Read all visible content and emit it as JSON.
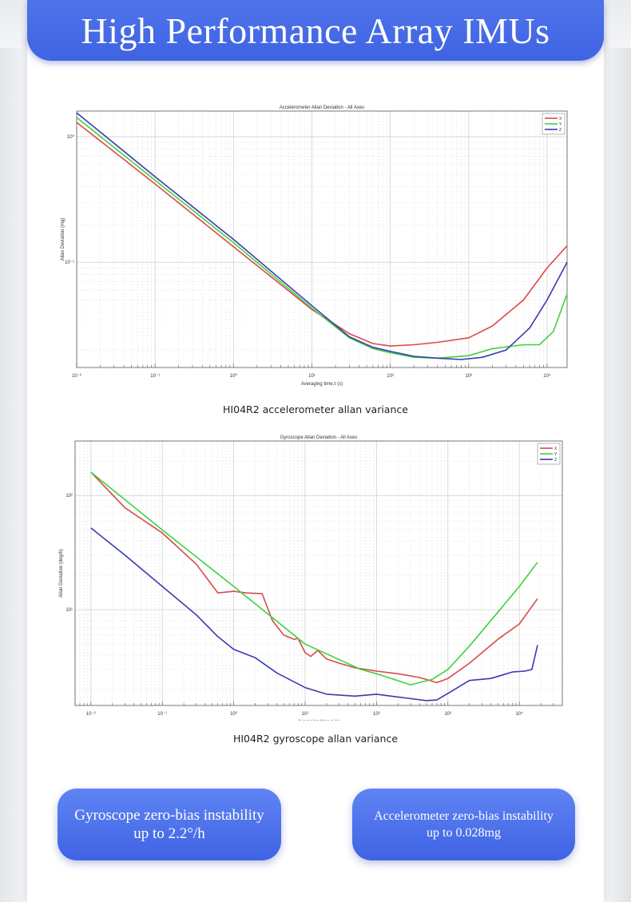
{
  "page": {
    "title": "High Performance Array IMUs",
    "captions": {
      "accel": "HI04R2 accelerometer allan variance",
      "gyro": "HI04R2 gyroscope allan variance"
    },
    "badges": {
      "gyro_line1": "Gyroscope zero-bias instability",
      "gyro_line2": "up to 2.2°/h",
      "accel_line1": "Accelerometer zero-bias instability",
      "accel_line2": "up to 0.028mg"
    }
  },
  "colors": {
    "x": "#d94a4a",
    "y": "#3fd23f",
    "z": "#3a3ab0",
    "accent": "#4a6ee8"
  },
  "chart_data": [
    {
      "id": "accel",
      "type": "line",
      "title": "Accelerometer Allan Deviation - All Axes",
      "xlabel": "Averaging time,τ (s)",
      "ylabel": "Allan Deviation (mg)",
      "xscale": "log",
      "yscale": "log",
      "xlim": [
        0.01,
        18000
      ],
      "ylim": [
        0.0145,
        1.6
      ],
      "xticks": [
        {
          "v": 0.01,
          "label": "10⁻²"
        },
        {
          "v": 0.1,
          "label": "10⁻¹"
        },
        {
          "v": 1,
          "label": "10⁰"
        },
        {
          "v": 10,
          "label": "10¹"
        },
        {
          "v": 100,
          "label": "10²"
        },
        {
          "v": 1000,
          "label": "10³"
        },
        {
          "v": 10000,
          "label": "10⁴"
        }
      ],
      "yticks": [
        {
          "v": 1,
          "label": "10⁰"
        },
        {
          "v": 0.1,
          "label": "10⁻¹"
        }
      ],
      "legend": "top-right",
      "series": [
        {
          "name": "X",
          "color": "#d94a4a",
          "points": [
            [
              0.01,
              1.3
            ],
            [
              0.1,
              0.42
            ],
            [
              1,
              0.133
            ],
            [
              10,
              0.042
            ],
            [
              30,
              0.027
            ],
            [
              60,
              0.0225
            ],
            [
              100,
              0.0215
            ],
            [
              200,
              0.022
            ],
            [
              400,
              0.023
            ],
            [
              1000,
              0.025
            ],
            [
              2000,
              0.031
            ],
            [
              5000,
              0.05
            ],
            [
              10000,
              0.09
            ],
            [
              18000,
              0.135
            ]
          ]
        },
        {
          "name": "Y",
          "color": "#3fd23f",
          "points": [
            [
              0.01,
              1.42
            ],
            [
              0.1,
              0.45
            ],
            [
              1,
              0.143
            ],
            [
              10,
              0.043
            ],
            [
              30,
              0.025
            ],
            [
              60,
              0.0205
            ],
            [
              100,
              0.019
            ],
            [
              200,
              0.0175
            ],
            [
              400,
              0.0172
            ],
            [
              1000,
              0.018
            ],
            [
              2000,
              0.0205
            ],
            [
              5000,
              0.022
            ],
            [
              8000,
              0.022
            ],
            [
              12000,
              0.028
            ],
            [
              18000,
              0.056
            ]
          ]
        },
        {
          "name": "Z",
          "color": "#3a3ab0",
          "points": [
            [
              0.01,
              1.55
            ],
            [
              0.1,
              0.48
            ],
            [
              1,
              0.152
            ],
            [
              10,
              0.045
            ],
            [
              30,
              0.0255
            ],
            [
              60,
              0.021
            ],
            [
              100,
              0.0195
            ],
            [
              200,
              0.0178
            ],
            [
              400,
              0.0172
            ],
            [
              800,
              0.0168
            ],
            [
              1500,
              0.0175
            ],
            [
              3000,
              0.02
            ],
            [
              6000,
              0.03
            ],
            [
              10000,
              0.05
            ],
            [
              18000,
              0.1
            ]
          ]
        }
      ]
    },
    {
      "id": "gyro",
      "type": "line",
      "title": "Gyroscope Allan Deviation - All Axes",
      "xlabel": "Averaging time,τ (s)",
      "ylabel": "Allan Deviation (deg/h)",
      "xscale": "log",
      "yscale": "log",
      "xlim": [
        0.006,
        40000
      ],
      "ylim": [
        1.45,
        300
      ],
      "xticks": [
        {
          "v": 0.01,
          "label": "10⁻²"
        },
        {
          "v": 0.1,
          "label": "10⁻¹"
        },
        {
          "v": 1,
          "label": "10⁰"
        },
        {
          "v": 10,
          "label": "10¹"
        },
        {
          "v": 100,
          "label": "10²"
        },
        {
          "v": 1000,
          "label": "10³"
        },
        {
          "v": 10000,
          "label": "10⁴"
        }
      ],
      "yticks": [
        {
          "v": 100,
          "label": "10²"
        },
        {
          "v": 10,
          "label": "10¹"
        }
      ],
      "legend": "top-right",
      "series": [
        {
          "name": "X",
          "color": "#d94a4a",
          "points": [
            [
              0.01,
              160
            ],
            [
              0.03,
              78
            ],
            [
              0.1,
              47
            ],
            [
              0.3,
              25
            ],
            [
              0.6,
              14
            ],
            [
              1,
              14.5
            ],
            [
              1.5,
              14
            ],
            [
              2.5,
              13.8
            ],
            [
              3.5,
              8
            ],
            [
              5,
              6
            ],
            [
              7,
              5.5
            ],
            [
              8,
              5.6
            ],
            [
              10,
              4.2
            ],
            [
              12,
              3.9
            ],
            [
              15,
              4.4
            ],
            [
              20,
              3.7
            ],
            [
              30,
              3.4
            ],
            [
              50,
              3.1
            ],
            [
              100,
              2.9
            ],
            [
              200,
              2.75
            ],
            [
              400,
              2.55
            ],
            [
              700,
              2.3
            ],
            [
              1000,
              2.5
            ],
            [
              2000,
              3.4
            ],
            [
              5000,
              5.5
            ],
            [
              10000,
              7.5
            ],
            [
              18000,
              12.5
            ]
          ]
        },
        {
          "name": "Y",
          "color": "#3fd23f",
          "points": [
            [
              0.01,
              160
            ],
            [
              0.1,
              50
            ],
            [
              1,
              16
            ],
            [
              10,
              5
            ],
            [
              60,
              3
            ],
            [
              100,
              2.75
            ],
            [
              300,
              2.2
            ],
            [
              600,
              2.45
            ],
            [
              1000,
              3
            ],
            [
              2000,
              4.8
            ],
            [
              5000,
              9.5
            ],
            [
              10000,
              16
            ],
            [
              18000,
              26
            ]
          ]
        },
        {
          "name": "Z",
          "color": "#3a3ab0",
          "points": [
            [
              0.01,
              52
            ],
            [
              0.03,
              30
            ],
            [
              0.1,
              16
            ],
            [
              0.3,
              9
            ],
            [
              0.6,
              5.8
            ],
            [
              1,
              4.5
            ],
            [
              2,
              3.8
            ],
            [
              4,
              2.8
            ],
            [
              10,
              2.08
            ],
            [
              20,
              1.82
            ],
            [
              50,
              1.75
            ],
            [
              100,
              1.82
            ],
            [
              200,
              1.72
            ],
            [
              500,
              1.6
            ],
            [
              700,
              1.62
            ],
            [
              1000,
              1.85
            ],
            [
              2000,
              2.4
            ],
            [
              4000,
              2.5
            ],
            [
              8000,
              2.85
            ],
            [
              12000,
              2.9
            ],
            [
              15000,
              3
            ],
            [
              18000,
              4.9
            ]
          ]
        }
      ]
    }
  ]
}
